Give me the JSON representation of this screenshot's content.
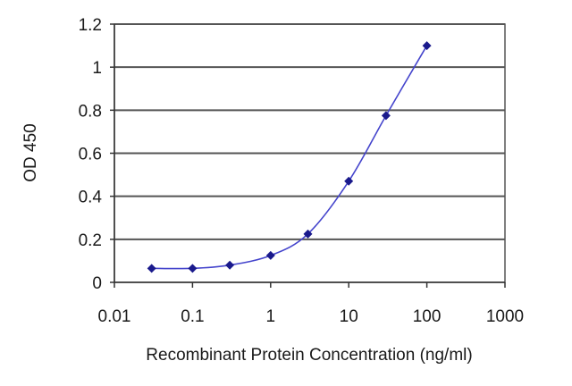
{
  "chart_data": {
    "type": "line",
    "xscale": "log",
    "title": "",
    "xlabel": "Recombinant Protein Concentration (ng/ml)",
    "ylabel": "OD 450",
    "xlim": [
      0.01,
      1000
    ],
    "ylim": [
      0,
      1.2
    ],
    "x_ticks": [
      "0.01",
      "0.1",
      "1",
      "10",
      "100",
      "1000"
    ],
    "y_ticks": [
      "0",
      "0.2",
      "0.4",
      "0.6",
      "0.8",
      "1",
      "1.2"
    ],
    "grid": "horizontal",
    "series": [
      {
        "x": [
          0.03,
          0.1,
          0.3,
          1,
          3,
          10,
          30,
          100
        ],
        "y": [
          0.065,
          0.065,
          0.08,
          0.125,
          0.225,
          0.47,
          0.775,
          1.1
        ]
      }
    ],
    "colors": {
      "line": "#4444cc",
      "marker": "#1a1a8c",
      "grid": "#555555"
    }
  }
}
